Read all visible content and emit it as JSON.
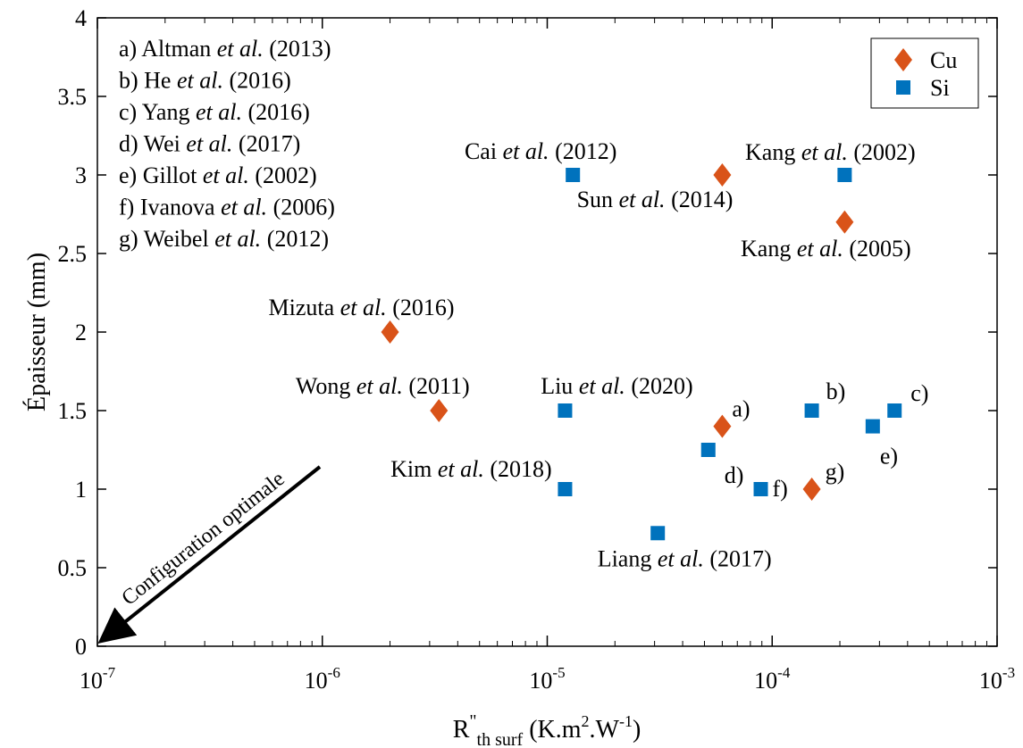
{
  "chart_data": {
    "type": "scatter",
    "xscale": "log",
    "xlim": [
      1e-07,
      0.001
    ],
    "ylim": [
      0,
      4
    ],
    "grid": false,
    "xlabel": "R\"th surf (K.m2.W-1)",
    "xlabel_parts": {
      "main": "R",
      "sup": "\"",
      "sub": "th surf",
      "unit": "(K.m",
      "unit_sup1": "2",
      "unit_mid": ".W",
      "unit_sup2": "-1",
      "unit_end": ")"
    },
    "ylabel": "Épaisseur (mm)",
    "xticks": [
      {
        "value": 1e-07,
        "base": "10",
        "exp": "-7"
      },
      {
        "value": 1e-06,
        "base": "10",
        "exp": "-6"
      },
      {
        "value": 1e-05,
        "base": "10",
        "exp": "-5"
      },
      {
        "value": 0.0001,
        "base": "10",
        "exp": "-4"
      },
      {
        "value": 0.001,
        "base": "10",
        "exp": "-3"
      }
    ],
    "yticks": [
      {
        "value": 0,
        "label": "0"
      },
      {
        "value": 0.5,
        "label": "0.5"
      },
      {
        "value": 1,
        "label": "1"
      },
      {
        "value": 1.5,
        "label": "1.5"
      },
      {
        "value": 2,
        "label": "2"
      },
      {
        "value": 2.5,
        "label": "2.5"
      },
      {
        "value": 3,
        "label": "3"
      },
      {
        "value": 3.5,
        "label": "3.5"
      },
      {
        "value": 4,
        "label": "4"
      }
    ],
    "legend": {
      "placement": "top-right",
      "entries": [
        {
          "name": "Cu",
          "marker": "diamond"
        },
        {
          "name": "Si",
          "marker": "square"
        }
      ]
    },
    "colors": {
      "Cu": "#d95319",
      "Si": "#0072bd"
    },
    "series": [
      {
        "name": "Cu",
        "points": [
          {
            "x": 2e-06,
            "y": 2.0
          },
          {
            "x": 3.3e-06,
            "y": 1.5
          },
          {
            "x": 6e-05,
            "y": 3.0
          },
          {
            "x": 6e-05,
            "y": 1.4
          },
          {
            "x": 0.00021,
            "y": 2.7
          },
          {
            "x": 0.00015,
            "y": 1.0
          }
        ]
      },
      {
        "name": "Si",
        "points": [
          {
            "x": 1.3e-05,
            "y": 3.0
          },
          {
            "x": 0.00021,
            "y": 3.0
          },
          {
            "x": 1.2e-05,
            "y": 1.5
          },
          {
            "x": 1.2e-05,
            "y": 1.0
          },
          {
            "x": 3.1e-05,
            "y": 0.72
          },
          {
            "x": 5.2e-05,
            "y": 1.25
          },
          {
            "x": 8.9e-05,
            "y": 1.0
          },
          {
            "x": 0.00015,
            "y": 1.5
          },
          {
            "x": 0.00028,
            "y": 1.4
          },
          {
            "x": 0.00035,
            "y": 1.5
          }
        ]
      }
    ],
    "point_labels": [
      {
        "pre": "Mizuta ",
        "em": "et al.",
        "post": " (2016)",
        "x": 2e-06,
        "y": 2.0
      },
      {
        "pre": "Wong ",
        "em": "et al.",
        "post": " (2011)",
        "x": 3.3e-06,
        "y": 1.5
      },
      {
        "pre": "Cai ",
        "em": "et al.",
        "post": " (2012)",
        "x": 1.3e-05,
        "y": 3.0
      },
      {
        "pre": "Sun ",
        "em": "et al.",
        "post": " (2014)",
        "x": 6e-05,
        "y": 3.0
      },
      {
        "pre": "Kang ",
        "em": "et al.",
        "post": " (2002)",
        "x": 0.00021,
        "y": 3.0
      },
      {
        "pre": "Kang ",
        "em": "et al.",
        "post": " (2005)",
        "x": 0.00021,
        "y": 2.7
      },
      {
        "pre": "Liu ",
        "em": "et al.",
        "post": " (2020)",
        "x": 1.2e-05,
        "y": 1.5
      },
      {
        "pre": "Kim ",
        "em": "et al.",
        "post": " (2018)",
        "x": 1.2e-05,
        "y": 1.0
      },
      {
        "pre": "Liang ",
        "em": "et al.",
        "post": " (2017)",
        "x": 3.1e-05,
        "y": 0.72
      },
      {
        "pre": "a)",
        "em": "",
        "post": "",
        "x": 6e-05,
        "y": 1.4
      },
      {
        "pre": "b)",
        "em": "",
        "post": "",
        "x": 0.00015,
        "y": 1.5
      },
      {
        "pre": "c)",
        "em": "",
        "post": "",
        "x": 0.00035,
        "y": 1.5
      },
      {
        "pre": "d)",
        "em": "",
        "post": "",
        "x": 5.2e-05,
        "y": 1.25
      },
      {
        "pre": "e)",
        "em": "",
        "post": "",
        "x": 0.00028,
        "y": 1.4
      },
      {
        "pre": "f)",
        "em": "",
        "post": "",
        "x": 8.9e-05,
        "y": 1.0
      },
      {
        "pre": "g)",
        "em": "",
        "post": "",
        "x": 0.00015,
        "y": 1.0
      }
    ],
    "reference_list": [
      {
        "pre": "a) Altman ",
        "em": "et al.",
        "post": " (2013)"
      },
      {
        "pre": "b) He ",
        "em": "et al.",
        "post": " (2016)"
      },
      {
        "pre": "c) Yang ",
        "em": "et al.",
        "post": " (2016)"
      },
      {
        "pre": "d) Wei ",
        "em": "et al.",
        "post": " (2017)"
      },
      {
        "pre": "e) Gillot ",
        "em": "et al.",
        "post": " (2002)"
      },
      {
        "pre": "f) Ivanova ",
        "em": "et al.",
        "post": " (2006)"
      },
      {
        "pre": "g) Weibel ",
        "em": "et al.",
        "post": " (2012)"
      }
    ],
    "annotation": {
      "text": "Configuration optimale",
      "arrow_direction": "bottom-left"
    }
  }
}
